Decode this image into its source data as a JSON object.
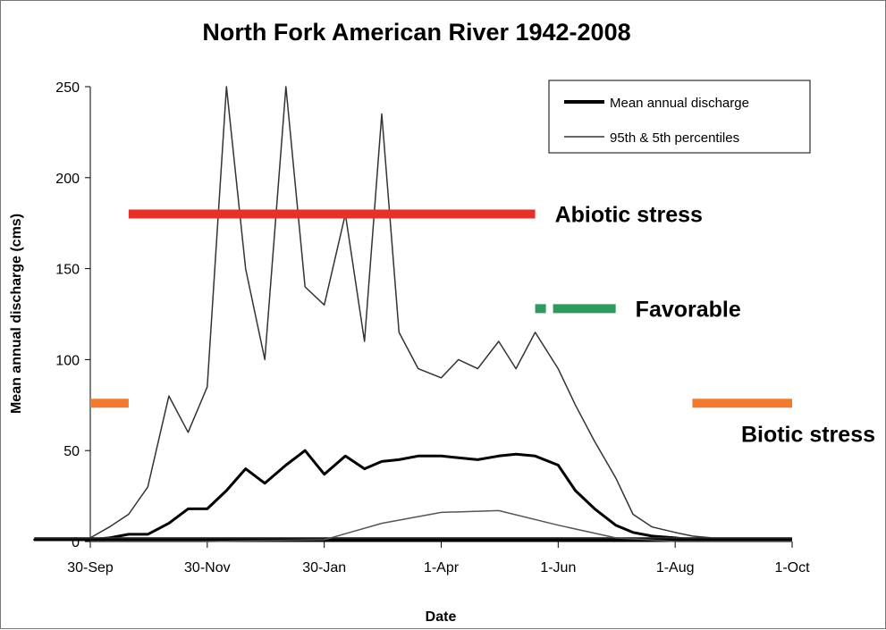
{
  "chart_data": {
    "type": "line",
    "title": "North Fork American River 1942-2008",
    "xlabel": "Date",
    "ylabel": "Mean annual discharge (cms)",
    "ylim": [
      0,
      250
    ],
    "yticks": [
      0,
      50,
      100,
      150,
      200,
      250
    ],
    "xlim": [
      "30-Sep",
      "1-Oct"
    ],
    "xticks": [
      "30-Sep",
      "30-Nov",
      "30-Jan",
      "1-Apr",
      "1-Jun",
      "1-Aug",
      "1-Oct"
    ],
    "legend": {
      "position": "top-right",
      "entries": [
        "Mean annual discharge",
        "95th & 5th percentiles"
      ]
    },
    "series": [
      {
        "name": "Mean annual discharge",
        "color": "#000000",
        "x": [
          "30-Sep",
          "10-Oct",
          "20-Oct",
          "30-Oct",
          "10-Nov",
          "20-Nov",
          "30-Nov",
          "10-Dec",
          "20-Dec",
          "30-Dec",
          "10-Jan",
          "20-Jan",
          "30-Jan",
          "10-Feb",
          "20-Feb",
          "1-Mar",
          "10-Mar",
          "20-Mar",
          "1-Apr",
          "10-Apr",
          "20-Apr",
          "1-May",
          "10-May",
          "20-May",
          "1-Jun",
          "10-Jun",
          "20-Jun",
          "1-Jul",
          "10-Jul",
          "20-Jul",
          "1-Aug",
          "10-Aug",
          "20-Aug",
          "1-Sep",
          "10-Sep",
          "20-Sep",
          "1-Oct"
        ],
        "y": [
          1,
          2,
          4,
          4,
          10,
          18,
          18,
          28,
          40,
          32,
          42,
          50,
          37,
          47,
          40,
          44,
          45,
          47,
          47,
          46,
          45,
          47,
          48,
          47,
          42,
          28,
          18,
          9,
          5,
          3,
          2,
          1,
          1,
          1,
          1,
          1,
          1
        ]
      },
      {
        "name": "95th percentile",
        "color": "#333333",
        "x": [
          "30-Sep",
          "10-Oct",
          "20-Oct",
          "30-Oct",
          "10-Nov",
          "20-Nov",
          "30-Nov",
          "10-Dec",
          "20-Dec",
          "30-Dec",
          "10-Jan",
          "20-Jan",
          "30-Jan",
          "10-Feb",
          "20-Feb",
          "1-Mar",
          "10-Mar",
          "20-Mar",
          "1-Apr",
          "10-Apr",
          "20-Apr",
          "1-May",
          "10-May",
          "20-May",
          "1-Jun",
          "10-Jun",
          "20-Jun",
          "1-Jul",
          "10-Jul",
          "20-Jul",
          "1-Aug",
          "10-Aug",
          "20-Aug",
          "1-Sep",
          "10-Sep",
          "20-Sep",
          "1-Oct"
        ],
        "y": [
          2,
          8,
          15,
          30,
          80,
          60,
          85,
          250,
          150,
          100,
          250,
          140,
          130,
          180,
          110,
          235,
          115,
          95,
          90,
          100,
          95,
          110,
          95,
          115,
          95,
          75,
          55,
          35,
          15,
          8,
          5,
          3,
          2,
          2,
          2,
          2,
          2
        ]
      },
      {
        "name": "5th percentile",
        "color": "#555555",
        "x": [
          "30-Sep",
          "30-Nov",
          "30-Jan",
          "1-Mar",
          "1-Apr",
          "1-May",
          "1-Jun",
          "1-Jul",
          "1-Aug",
          "1-Oct"
        ],
        "y": [
          0,
          0,
          1,
          10,
          16,
          17,
          9,
          2,
          0,
          0
        ]
      }
    ],
    "bands": [
      {
        "label": "Abiotic stress",
        "y": 180,
        "x_start": "20-Oct",
        "x_end": "20-May",
        "color": "#e8302a",
        "style": "solid"
      },
      {
        "label": "Favorable",
        "y": 128,
        "x_start": "20-May",
        "x_end": "1-Jul",
        "color": "#2e9a5e",
        "style": "dashed"
      },
      {
        "label": "",
        "y": 76,
        "x_start": "30-Sep",
        "x_end": "20-Oct",
        "color": "#f07a30",
        "style": "solid"
      },
      {
        "label": "Biotic stress",
        "y": 76,
        "x_start": "10-Aug",
        "x_end": "1-Oct",
        "color": "#f07a30",
        "style": "solid"
      }
    ]
  }
}
